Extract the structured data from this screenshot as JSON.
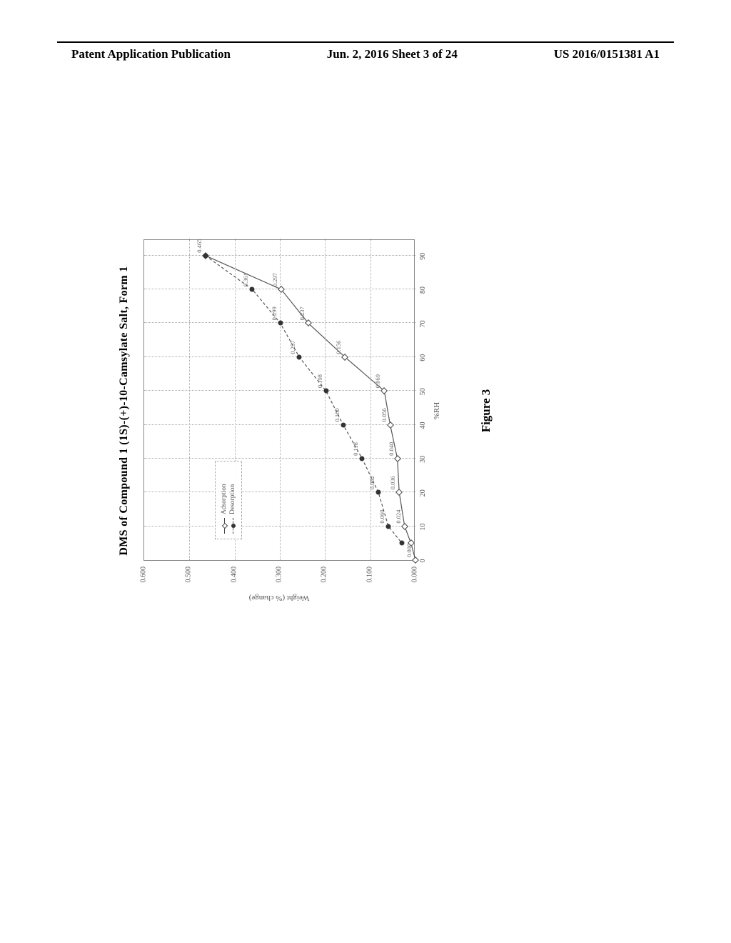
{
  "header": {
    "left": "Patent Application Publication",
    "center": "Jun. 2, 2016  Sheet 3 of 24",
    "right": "US 2016/0151381 A1"
  },
  "chart": {
    "type": "line",
    "title": "DMS of Compound 1 (1S)-(+)-10-Camsylate Salt, Form 1",
    "xlabel": "%RH",
    "ylabel": "Weight (% change)",
    "xlim": [
      0,
      95
    ],
    "ylim": [
      0,
      0.6
    ],
    "xticks": [
      0,
      10,
      20,
      30,
      40,
      50,
      60,
      70,
      80,
      90
    ],
    "yticks": [
      "0.000",
      "0.100",
      "0.200",
      "0.300",
      "0.400",
      "0.500",
      "0.600"
    ],
    "grid_color": "#aaaaaa",
    "background_color": "#ffffff",
    "border_color": "#888888",
    "line_color": "#444444",
    "marker_size": 7,
    "title_fontsize": 16,
    "label_fontsize": 11,
    "tick_fontsize": 10,
    "adsorption": {
      "label": "Adsorption",
      "marker": "open-diamond",
      "linestyle": "solid",
      "x": [
        0,
        5,
        10,
        20,
        30,
        40,
        50,
        60,
        70,
        80,
        90
      ],
      "y": [
        0.0,
        0.01,
        0.024,
        0.036,
        0.04,
        0.056,
        0.069,
        0.156,
        0.237,
        0.297,
        0.465
      ],
      "labels": [
        "0.000",
        "",
        "0.024",
        "0.036",
        "0.040",
        "0.056",
        "0.069",
        "0.156",
        "0.237",
        "0.297",
        "0.465"
      ]
    },
    "desorption": {
      "label": "Desorption",
      "marker": "filled-circle",
      "linestyle": "dashed",
      "x": [
        90,
        80,
        70,
        60,
        50,
        40,
        30,
        20,
        10,
        5
      ],
      "y": [
        0.465,
        0.361,
        0.299,
        0.257,
        0.198,
        0.16,
        0.118,
        0.082,
        0.06,
        0.03
      ],
      "labels": [
        "",
        "0.361",
        "0.299",
        "0.257",
        "0.198",
        "0.160",
        "0.118",
        "0.082",
        "0.060",
        ""
      ]
    }
  },
  "figure_caption": "Figure 3"
}
